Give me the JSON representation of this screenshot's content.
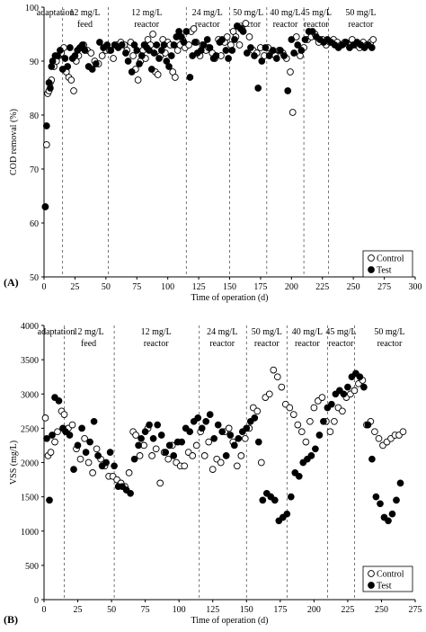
{
  "chart_data": [
    {
      "panel_label": "(A)",
      "type": "scatter",
      "title": "",
      "xlabel": "Time of operation (d)",
      "ylabel": "COD removal (%)",
      "xlim": [
        0,
        300
      ],
      "ylim": [
        50,
        100
      ],
      "xticks": [
        0,
        25,
        50,
        75,
        100,
        125,
        150,
        175,
        200,
        225,
        250,
        275,
        300
      ],
      "yticks": [
        50,
        60,
        70,
        80,
        90,
        100
      ],
      "grid": false,
      "legend_position": "bottom-right",
      "phase_boundaries": [
        15,
        52,
        115,
        150,
        180,
        210,
        230
      ],
      "phases": [
        {
          "label": "adaptation",
          "center": 7
        },
        {
          "label": "12 mg/L\nfeed",
          "center": 33
        },
        {
          "label": "12 mg/L\nreactor",
          "center": 83
        },
        {
          "label": "24 mg/L\nreactor",
          "center": 132
        },
        {
          "label": "50 mg/L\nreactor",
          "center": 165
        },
        {
          "label": "40 mg/L\nreactor",
          "center": 195
        },
        {
          "label": "45 mg/L\nreactor",
          "center": 220
        },
        {
          "label": "50 mg/L\nreactor",
          "center": 256
        }
      ],
      "series": [
        {
          "name": "Control",
          "marker": "open-circle",
          "x": [
            1,
            2,
            3,
            4,
            5,
            6,
            8,
            10,
            12,
            14,
            16,
            18,
            20,
            22,
            24,
            26,
            28,
            30,
            32,
            35,
            38,
            41,
            44,
            47,
            50,
            53,
            56,
            59,
            62,
            65,
            67,
            70,
            72,
            74,
            76,
            78,
            80,
            82,
            84,
            86,
            88,
            90,
            92,
            94,
            96,
            98,
            100,
            102,
            104,
            106,
            108,
            110,
            112,
            114,
            117,
            119,
            121,
            123,
            126,
            128,
            131,
            133,
            136,
            138,
            141,
            143,
            146,
            148,
            151,
            153,
            155,
            158,
            160,
            163,
            166,
            169,
            172,
            175,
            178,
            181,
            184,
            187,
            190,
            193,
            196,
            199,
            201,
            204,
            207,
            210,
            213,
            216,
            219,
            222,
            225,
            228,
            231,
            234,
            237,
            240,
            243,
            246,
            249,
            252,
            255,
            258,
            261,
            264,
            266
          ],
          "y": [
            63,
            74.5,
            84,
            84.5,
            86,
            86.5,
            89,
            90,
            91,
            91.5,
            92.5,
            88,
            87,
            86.5,
            84.5,
            90,
            91,
            92.5,
            93,
            92,
            91.5,
            90,
            89.5,
            91,
            92,
            92,
            90.5,
            93,
            93.5,
            93,
            92,
            93.5,
            91,
            88.5,
            86.5,
            90,
            92,
            90.5,
            94,
            93,
            95,
            88,
            87.5,
            91,
            94,
            91.5,
            93.5,
            93,
            88,
            87,
            92,
            93,
            94,
            92.5,
            93,
            95.5,
            96,
            93.5,
            91,
            93,
            92,
            92.5,
            91.5,
            90.5,
            94,
            91,
            93.5,
            94.5,
            93,
            95.5,
            94.5,
            93,
            96,
            97,
            94.5,
            92,
            91.5,
            92.5,
            91,
            92.5,
            91.5,
            91,
            92,
            91.5,
            90.5,
            88,
            80.5,
            94.5,
            91,
            92.5,
            94,
            94.5,
            95,
            93.5,
            94,
            93,
            93.5,
            94,
            93.5,
            93,
            93.5,
            93,
            94,
            93,
            92.5,
            93.5,
            93,
            93.5,
            94
          ]
        },
        {
          "name": "Test",
          "marker": "filled-circle",
          "x": [
            1,
            2,
            4,
            5,
            6,
            7,
            9,
            11,
            13,
            15,
            17,
            19,
            21,
            23,
            25,
            27,
            29,
            31,
            33,
            36,
            39,
            42,
            45,
            48,
            51,
            54,
            57,
            60,
            63,
            66,
            68,
            71,
            73,
            75,
            77,
            79,
            81,
            83,
            85,
            87,
            89,
            91,
            93,
            95,
            97,
            99,
            101,
            103,
            105,
            107,
            109,
            111,
            113,
            115,
            118,
            120,
            122,
            124,
            127,
            129,
            132,
            134,
            137,
            139,
            142,
            144,
            147,
            149,
            152,
            154,
            156,
            159,
            161,
            164,
            167,
            170,
            173,
            176,
            179,
            182,
            185,
            188,
            191,
            194,
            197,
            200,
            202,
            205,
            208,
            211,
            214,
            217,
            220,
            223,
            226,
            229,
            232,
            235,
            238,
            241,
            244,
            247,
            250,
            253,
            256,
            259,
            262,
            265
          ],
          "y": [
            63,
            78,
            86,
            85,
            89,
            90,
            91,
            91,
            92,
            88.5,
            90.5,
            89,
            92.5,
            90.5,
            91,
            92,
            92.5,
            93,
            92,
            89,
            88.5,
            89.5,
            93.5,
            92.5,
            93,
            92,
            93,
            92.5,
            93,
            91.5,
            90,
            88,
            93,
            92,
            89.5,
            91,
            93,
            92.5,
            92,
            88.5,
            91.5,
            93,
            90.5,
            92,
            93,
            90,
            89,
            91,
            93,
            94.5,
            95.5,
            94.5,
            93.5,
            95.5,
            87,
            91,
            93.5,
            91.5,
            92,
            93,
            94,
            92.5,
            90.5,
            91,
            93.5,
            94,
            92,
            90.5,
            92,
            94,
            96.5,
            96,
            95.5,
            91.5,
            92.5,
            91,
            85,
            90,
            92.5,
            91,
            92,
            90.5,
            92,
            91,
            84.5,
            94,
            91.5,
            93,
            92,
            94,
            95.5,
            95.5,
            94.5,
            94,
            93.5,
            94,
            93.5,
            93,
            92.5,
            93,
            93.5,
            92.5,
            93,
            93.5,
            93,
            92.5,
            93,
            92.5
          ]
        }
      ]
    },
    {
      "panel_label": "(B)",
      "type": "scatter",
      "title": "",
      "xlabel": "Time of operation (d)",
      "ylabel": "VSS (mg/L)",
      "xlim": [
        0,
        275
      ],
      "ylim": [
        0,
        4000
      ],
      "xticks": [
        0,
        25,
        50,
        75,
        100,
        125,
        150,
        175,
        200,
        225,
        250,
        275
      ],
      "yticks": [
        0,
        500,
        1000,
        1500,
        2000,
        2500,
        3000,
        3500,
        4000
      ],
      "grid": false,
      "legend_position": "bottom-right",
      "phase_boundaries": [
        15,
        52,
        115,
        150,
        180,
        210,
        230
      ],
      "phases": [
        {
          "label": "adaptation",
          "center": 7
        },
        {
          "label": "12 mg/L\nfeed",
          "center": 33
        },
        {
          "label": "12 mg/L\nreactor",
          "center": 83
        },
        {
          "label": "24 mg/L\nreactor",
          "center": 132
        },
        {
          "label": "50 mg/L\nreactor",
          "center": 165
        },
        {
          "label": "40 mg/L\nreactor",
          "center": 195
        },
        {
          "label": "45 mg/L\nreactor",
          "center": 220
        },
        {
          "label": "50 mg/L\nreactor",
          "center": 256
        }
      ],
      "series": [
        {
          "name": "Control",
          "marker": "open-circle",
          "x": [
            1,
            3,
            5,
            8,
            10,
            13,
            15,
            18,
            21,
            24,
            27,
            30,
            33,
            36,
            39,
            42,
            45,
            48,
            51,
            54,
            57,
            60,
            63,
            66,
            68,
            71,
            74,
            77,
            80,
            83,
            86,
            89,
            92,
            95,
            98,
            101,
            104,
            107,
            110,
            113,
            116,
            119,
            122,
            125,
            128,
            131,
            134,
            137,
            140,
            143,
            146,
            149,
            152,
            155,
            158,
            161,
            164,
            167,
            170,
            173,
            176,
            179,
            182,
            185,
            188,
            191,
            194,
            197,
            200,
            203,
            206,
            209,
            212,
            215,
            218,
            221,
            224,
            227,
            230,
            233,
            236,
            239,
            242,
            245,
            248,
            251,
            254,
            257,
            260,
            263,
            266
          ],
          "y": [
            2650,
            2100,
            2150,
            2300,
            2450,
            2750,
            2700,
            2500,
            2550,
            2200,
            2050,
            2350,
            2000,
            1850,
            2200,
            2050,
            1950,
            1800,
            1800,
            1750,
            1700,
            1650,
            1850,
            2450,
            2400,
            2100,
            2250,
            2500,
            2100,
            2200,
            1700,
            2150,
            2050,
            2250,
            2000,
            1950,
            1950,
            2150,
            2100,
            2250,
            2450,
            2100,
            2300,
            1900,
            2050,
            2000,
            2450,
            2500,
            2300,
            1950,
            2100,
            2350,
            2500,
            2800,
            2750,
            2000,
            2950,
            3000,
            3350,
            3250,
            3100,
            2850,
            2800,
            2700,
            2550,
            2450,
            2300,
            2600,
            2800,
            2900,
            2950,
            2600,
            2450,
            2600,
            2800,
            2750,
            2950,
            3000,
            3050,
            3150,
            3200,
            2550,
            2600,
            2450,
            2350,
            2250,
            2300,
            2350,
            2400,
            2400,
            2450
          ]
        },
        {
          "name": "Test",
          "marker": "filled-circle",
          "x": [
            2,
            4,
            6,
            8,
            11,
            14,
            16,
            19,
            22,
            25,
            28,
            31,
            34,
            37,
            40,
            43,
            46,
            49,
            52,
            55,
            58,
            61,
            64,
            67,
            70,
            72,
            75,
            78,
            81,
            84,
            87,
            90,
            93,
            96,
            99,
            102,
            105,
            108,
            111,
            114,
            117,
            120,
            123,
            126,
            129,
            132,
            135,
            138,
            141,
            144,
            147,
            150,
            153,
            156,
            159,
            162,
            165,
            168,
            171,
            174,
            177,
            180,
            183,
            186,
            189,
            192,
            195,
            198,
            201,
            204,
            207,
            210,
            213,
            216,
            219,
            222,
            225,
            228,
            231,
            234,
            237,
            240,
            243,
            246,
            249,
            252,
            255,
            258,
            261,
            264
          ],
          "y": [
            2350,
            1450,
            2400,
            2950,
            2900,
            2500,
            2450,
            2400,
            1900,
            2250,
            2500,
            2150,
            2300,
            2600,
            2100,
            1950,
            2000,
            2150,
            1950,
            1650,
            1650,
            1600,
            1550,
            2050,
            2250,
            2350,
            2450,
            2550,
            2350,
            2550,
            2400,
            2150,
            2250,
            2100,
            2300,
            2300,
            2500,
            2450,
            2600,
            2650,
            2500,
            2600,
            2700,
            2350,
            2550,
            2450,
            2100,
            2400,
            2250,
            2350,
            2450,
            2500,
            2600,
            2650,
            2300,
            1450,
            1550,
            1500,
            1450,
            1150,
            1200,
            1250,
            1500,
            1850,
            1800,
            2000,
            2050,
            2100,
            2200,
            2400,
            2600,
            2800,
            2850,
            3000,
            3050,
            3000,
            3100,
            3250,
            3300,
            3250,
            3100,
            2550,
            2050,
            1500,
            1400,
            1200,
            1150,
            1250,
            1450,
            1700
          ]
        }
      ]
    }
  ]
}
